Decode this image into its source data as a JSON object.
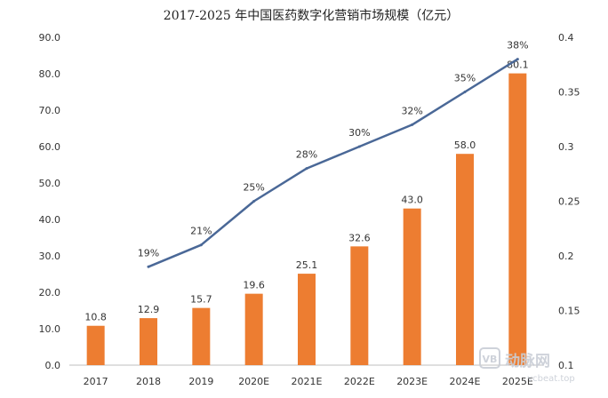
{
  "chart_data": {
    "type": "bar",
    "title": "2017-2025 年中国医药数字化营销市场规模（亿元）",
    "xlabel": "",
    "ylabel": "",
    "categories": [
      "2017",
      "2018",
      "2019",
      "2020E",
      "2021E",
      "2022E",
      "2023E",
      "2024E",
      "2025E"
    ],
    "series": [
      {
        "type": "bar",
        "axis": "left",
        "values": [
          10.8,
          12.9,
          15.7,
          19.6,
          25.1,
          32.6,
          43.0,
          58.0,
          80.1
        ],
        "labels": [
          "10.8",
          "12.9",
          "15.7",
          "19.6",
          "25.1",
          "32.6",
          "43.0",
          "58.0",
          "80.1"
        ],
        "color": "#ED7D31"
      },
      {
        "type": "line",
        "axis": "right",
        "values": [
          null,
          0.19,
          0.21,
          0.25,
          0.28,
          0.3,
          0.32,
          0.35,
          0.38
        ],
        "labels": [
          "",
          "19%",
          "21%",
          "25%",
          "28%",
          "30%",
          "32%",
          "35%",
          "38%"
        ],
        "color": "#4A6897"
      }
    ],
    "y_left": {
      "min": 0,
      "max": 90,
      "ticks": [
        "0.0",
        "10.0",
        "20.0",
        "30.0",
        "40.0",
        "50.0",
        "60.0",
        "70.0",
        "80.0",
        "90.0"
      ]
    },
    "y_right": {
      "min": 0.1,
      "max": 0.4,
      "ticks": [
        "0.1",
        "0.15",
        "0.2",
        "0.25",
        "0.3",
        "0.35",
        "0.4"
      ]
    },
    "grid": false,
    "legend": "none"
  },
  "watermark": {
    "brand": "动脉网",
    "site": "vcbeat.top",
    "color": "#c9ced6"
  }
}
